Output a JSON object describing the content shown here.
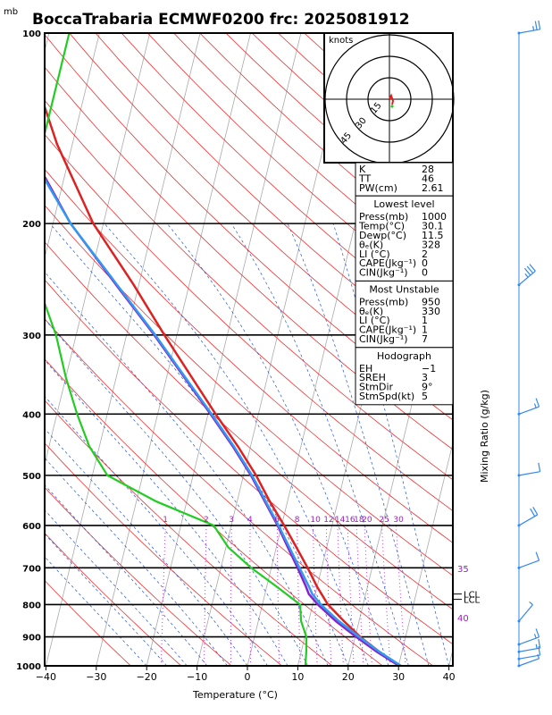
{
  "page": {
    "pressure_unit": "mb",
    "title": "BoccaTrabaria ECMWF0200 frc: 2025081912",
    "xlabel": "Temperature (°C)",
    "right_label": "Mixing Ratio (g/kg)"
  },
  "hodograph": {
    "label": "knots",
    "ring_labels": [
      "15",
      "30",
      "45"
    ]
  },
  "indices": {
    "top": [
      {
        "label": "K",
        "value": "28"
      },
      {
        "label": "TT",
        "value": "46"
      },
      {
        "label": "PW(cm)",
        "value": "2.61"
      }
    ],
    "sections": [
      {
        "header": "Lowest level",
        "rows": [
          {
            "label": "Press(mb)",
            "value": "1000"
          },
          {
            "label": "Temp(°C)",
            "value": "30.1"
          },
          {
            "label": "Dewp(°C)",
            "value": "11.5"
          },
          {
            "label": "θₑ(K)",
            "value": "328"
          },
          {
            "label": "LI (°C)",
            "value": "2"
          },
          {
            "label": "CAPE(Jkg⁻¹)",
            "value": "0"
          },
          {
            "label": "CIN(Jkg⁻¹)",
            "value": "0"
          }
        ]
      },
      {
        "header": "Most Unstable",
        "rows": [
          {
            "label": "Press(mb)",
            "value": "950"
          },
          {
            "label": "θₑ(K)",
            "value": "330"
          },
          {
            "label": "LI (°C)",
            "value": "1"
          },
          {
            "label": "CAPE(Jkg⁻¹)",
            "value": "1"
          },
          {
            "label": "CIN(Jkg⁻¹)",
            "value": "7"
          }
        ]
      },
      {
        "header": "Hodograph",
        "rows": [
          {
            "label": "EH",
            "value": "−1"
          },
          {
            "label": "SREH",
            "value": "3"
          },
          {
            "label": "StmDir",
            "value": "9°"
          },
          {
            "label": "StmSpd(kt)",
            "value": "5"
          }
        ]
      }
    ]
  },
  "chart_data": {
    "type": "line",
    "title": "BoccaTrabaria ECMWF0200 frc: 2025081912",
    "xlabel": "Temperature (°C)",
    "ylabel": "mb",
    "y_scale": "log",
    "ylim": [
      1000,
      100
    ],
    "xlim": [
      -40,
      40
    ],
    "x_ticks": [
      "−40",
      "−30",
      "−20",
      "−10",
      "0",
      "10",
      "20",
      "30",
      "40"
    ],
    "y_ticks": [
      "100",
      "200",
      "300",
      "400",
      "500",
      "600",
      "700",
      "800",
      "900",
      "1000"
    ],
    "mixing_ratio_labels": [
      "1",
      "2",
      "3",
      "4",
      "6",
      "8",
      "10",
      "12",
      "14",
      "16",
      "18",
      "20",
      "25",
      "30"
    ],
    "right_annotations": [
      "35",
      "40"
    ],
    "levels": [
      "LCL",
      "LCL"
    ],
    "series": [
      {
        "role": "temperature",
        "color": "#dd2222",
        "points": [
          [
            1000,
            30.1
          ],
          [
            950,
            25.5
          ],
          [
            900,
            21
          ],
          [
            850,
            17
          ],
          [
            800,
            13
          ],
          [
            750,
            10
          ],
          [
            700,
            7.2
          ],
          [
            650,
            4
          ],
          [
            600,
            0.5
          ],
          [
            550,
            -3.5
          ],
          [
            500,
            -7.5
          ],
          [
            450,
            -12.5
          ],
          [
            400,
            -18.5
          ],
          [
            350,
            -25
          ],
          [
            300,
            -32.5
          ],
          [
            250,
            -41
          ],
          [
            200,
            -52
          ],
          [
            150,
            -63
          ],
          [
            120,
            -70
          ],
          [
            105,
            -74
          ]
        ]
      },
      {
        "role": "parcel",
        "color": "#8822cc",
        "points": [
          [
            1000,
            30.1
          ],
          [
            950,
            25
          ],
          [
            900,
            20.2
          ],
          [
            850,
            15.4
          ],
          [
            800,
            11
          ],
          [
            770,
            8.7
          ],
          [
            750,
            7.8
          ],
          [
            700,
            5.2
          ],
          [
            650,
            2.3
          ],
          [
            600,
            -0.8
          ],
          [
            550,
            -4.5
          ],
          [
            500,
            -8.5
          ],
          [
            450,
            -13.5
          ],
          [
            400,
            -19.5
          ],
          [
            350,
            -26.5
          ],
          [
            300,
            -34.5
          ],
          [
            250,
            -44.5
          ],
          [
            200,
            -56.5
          ],
          [
            150,
            -69
          ],
          [
            120,
            -77
          ],
          [
            105,
            -81
          ]
        ]
      },
      {
        "role": "virtual",
        "color": "#3399ee",
        "points": [
          [
            1000,
            30.5
          ],
          [
            950,
            25.5
          ],
          [
            900,
            20.8
          ],
          [
            850,
            16
          ],
          [
            800,
            11.6
          ],
          [
            770,
            9.4
          ],
          [
            750,
            8.4
          ],
          [
            700,
            5.6
          ],
          [
            650,
            2.6
          ],
          [
            600,
            -0.6
          ],
          [
            550,
            -4.3
          ],
          [
            500,
            -8.3
          ],
          [
            450,
            -13.3
          ],
          [
            400,
            -19.3
          ],
          [
            350,
            -26.3
          ],
          [
            300,
            -34.3
          ],
          [
            250,
            -44.3
          ],
          [
            200,
            -56.5
          ],
          [
            150,
            -69.5
          ],
          [
            120,
            -78
          ],
          [
            105,
            -82.5
          ]
        ]
      },
      {
        "role": "dewpoint",
        "color": "#22cc22",
        "points": [
          [
            1000,
            11.5
          ],
          [
            950,
            11
          ],
          [
            900,
            10.3
          ],
          [
            850,
            8.5
          ],
          [
            800,
            7.5
          ],
          [
            750,
            2
          ],
          [
            700,
            -4
          ],
          [
            650,
            -9.5
          ],
          [
            600,
            -13.5
          ],
          [
            550,
            -26
          ],
          [
            500,
            -37
          ],
          [
            450,
            -42
          ],
          [
            400,
            -46
          ],
          [
            350,
            -50
          ],
          [
            300,
            -54
          ],
          [
            250,
            -60
          ],
          [
            200,
            -64
          ],
          [
            150,
            -66
          ],
          [
            120,
            -66
          ],
          [
            100,
            -66
          ]
        ]
      }
    ],
    "wind_barbs": [
      {
        "p": 100,
        "dir": 260,
        "spd": 25
      },
      {
        "p": 250,
        "dir": 230,
        "spd": 35
      },
      {
        "p": 400,
        "dir": 250,
        "spd": 15
      },
      {
        "p": 500,
        "dir": 260,
        "spd": 12
      },
      {
        "p": 600,
        "dir": 240,
        "spd": 20
      },
      {
        "p": 700,
        "dir": 250,
        "spd": 10
      },
      {
        "p": 850,
        "dir": 220,
        "spd": 5
      },
      {
        "p": 925,
        "dir": 250,
        "spd": 15
      },
      {
        "p": 950,
        "dir": 260,
        "spd": 15
      },
      {
        "p": 975,
        "dir": 260,
        "spd": 10
      },
      {
        "p": 1000,
        "dir": 250,
        "spd": 5
      }
    ]
  }
}
